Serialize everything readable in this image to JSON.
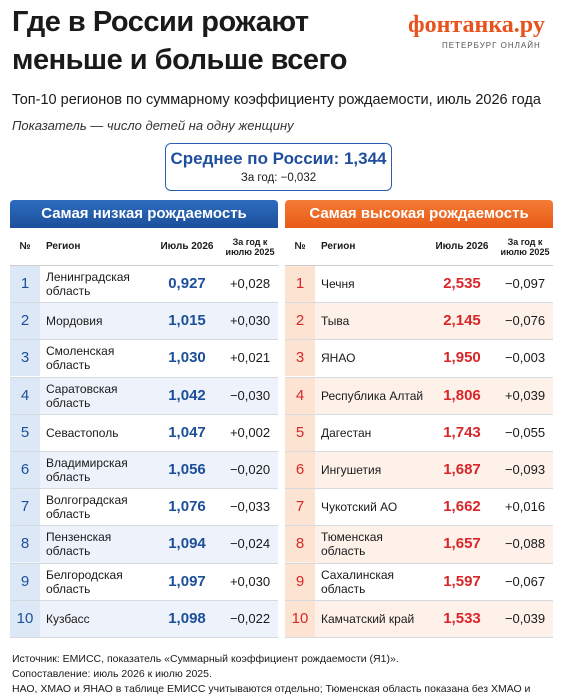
{
  "header": {
    "title_lines": [
      "Где в России рожают",
      "меньше и больше всего"
    ],
    "logo": "фонтанка.ру",
    "logo_sub": "ПЕТЕРБУРГ ОНЛАЙН",
    "subtitle": "Топ-10 регионов по суммарному коэффициенту рождаемости, июль 2026 года",
    "note": "Показатель — число детей на одну женщину"
  },
  "average": {
    "title": "Среднее по России: 1,344",
    "change": "За год: −0,032"
  },
  "tables": [
    {
      "title": "Самая низкая рождаемость",
      "columns": [
        "№",
        "Регион",
        "Июль 2026",
        "За год к июлю 2025"
      ],
      "rows": [
        [
          "1",
          "Ленинградская область",
          "0,927",
          "+0,028"
        ],
        [
          "2",
          "Мордовия",
          "1,015",
          "+0,030"
        ],
        [
          "3",
          "Смоленская область",
          "1,030",
          "+0,021"
        ],
        [
          "4",
          "Саратовская область",
          "1,042",
          "−0,030"
        ],
        [
          "5",
          "Севастополь",
          "1,047",
          "+0,002"
        ],
        [
          "6",
          "Владимирская область",
          "1,056",
          "−0,020"
        ],
        [
          "7",
          "Волгоградская область",
          "1,076",
          "−0,033"
        ],
        [
          "8",
          "Пензенская область",
          "1,094",
          "−0,024"
        ],
        [
          "9",
          "Белгородская область",
          "1,097",
          "+0,030"
        ],
        [
          "10",
          "Кузбасс",
          "1,098",
          "−0,022"
        ]
      ]
    },
    {
      "title": "Самая высокая рождаемость",
      "columns": [
        "№",
        "Регион",
        "Июль 2026",
        "За год к июлю 2025"
      ],
      "rows": [
        [
          "1",
          "Чечня",
          "2,535",
          "−0,097"
        ],
        [
          "2",
          "Тыва",
          "2,145",
          "−0,076"
        ],
        [
          "3",
          "ЯНАО",
          "1,950",
          "−0,003"
        ],
        [
          "4",
          "Республика Алтай",
          "1,806",
          "+0,039"
        ],
        [
          "5",
          "Дагестан",
          "1,743",
          "−0,055"
        ],
        [
          "6",
          "Ингушетия",
          "1,687",
          "−0,093"
        ],
        [
          "7",
          "Чукотский АО",
          "1,662",
          "+0,016"
        ],
        [
          "8",
          "Тюменская область",
          "1,657",
          "−0,088"
        ],
        [
          "9",
          "Сахалинская область",
          "1,597",
          "−0,067"
        ],
        [
          "10",
          "Камчатский край",
          "1,533",
          "−0,039"
        ]
      ]
    }
  ],
  "footer": [
    "Источник: ЕМИСС, показатель «Суммарный коэффициент рождаемости (Я1)».",
    "Сопоставление: июль 2026 к июлю 2025.",
    "НАО, ХМАО и ЯНАО в таблице ЕМИСС учитываются отдельно; Тюменская область показана без ХМАО и ЯНАО."
  ]
}
